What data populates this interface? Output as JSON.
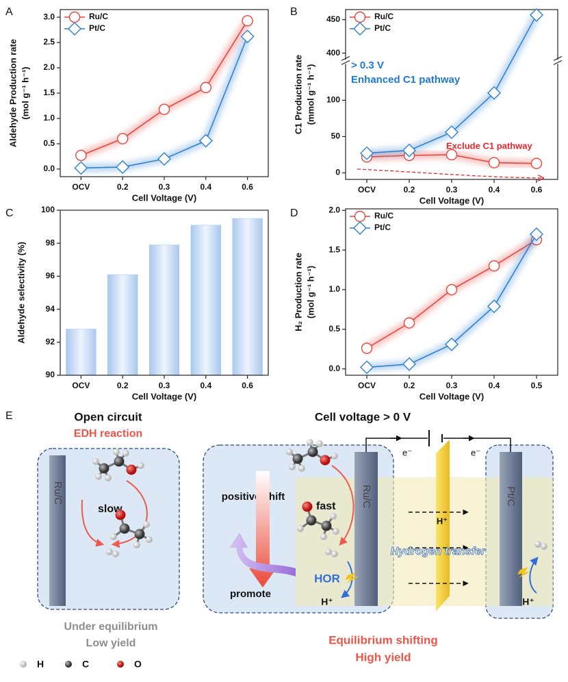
{
  "chart_data": [
    {
      "type": "line",
      "panel": "A",
      "xlabel": "Cell Voltage (V)",
      "ylabel": [
        "Aldehyde Production rate",
        "(mol g⁻¹ h⁻¹)"
      ],
      "categories": [
        "OCV",
        "0.2",
        "0.3",
        "0.4",
        "0.6"
      ],
      "ylim": [
        -0.15,
        3.15
      ],
      "yticks": [
        {
          "value": 0,
          "label": "0.0"
        },
        0.5,
        {
          "value": 1,
          "label": "1.0"
        },
        1.5,
        {
          "value": 2,
          "label": "2.0"
        },
        2.5,
        {
          "value": 3,
          "label": "3.0"
        }
      ],
      "legend": "upper left",
      "series": [
        {
          "name": "Ru/C",
          "color": "#e8453c",
          "marker": "circle",
          "values": [
            0.27,
            0.6,
            1.18,
            1.61,
            2.93
          ]
        },
        {
          "name": "Pt/C",
          "color": "#2f80d1",
          "marker": "diamond",
          "values": [
            0.02,
            0.04,
            0.2,
            0.56,
            2.62
          ]
        }
      ]
    },
    {
      "type": "line",
      "panel": "B",
      "xlabel": "Cell Voltage (V)",
      "ylabel": [
        "C1 Production rate",
        "(mmol g⁻¹ h⁻¹)"
      ],
      "categories": [
        "OCV",
        "0.2",
        "0.3",
        "0.4",
        "0.6"
      ],
      "ylim": [
        -9,
        465
      ],
      "ybreak": [
        150,
        390
      ],
      "yticks": [
        0,
        50,
        100,
        400,
        450
      ],
      "legend": "upper left",
      "annotations": [
        {
          "text": "> 0.3 V",
          "color": "#1f78d1"
        },
        {
          "text": "Enhanced C1 pathway",
          "color": "#1f78d1"
        },
        {
          "text": "Exclude C1 pathway",
          "color": "#e8262a"
        }
      ],
      "series": [
        {
          "name": "Ru/C",
          "color": "#e8453c",
          "marker": "circle",
          "values": [
            22,
            24,
            25,
            14,
            13
          ]
        },
        {
          "name": "Pt/C",
          "color": "#2f80d1",
          "marker": "diamond",
          "values": [
            27,
            31,
            56,
            110,
            457
          ]
        }
      ]
    },
    {
      "type": "bar",
      "panel": "C",
      "xlabel": "Cell Voltage (V)",
      "ylabel": [
        "Aldehyde selectivity (%)"
      ],
      "categories": [
        "OCV",
        "0.2",
        "0.3",
        "0.4",
        "0.6"
      ],
      "values": [
        92.8,
        96.1,
        97.9,
        99.1,
        99.5
      ],
      "color": "#a9c8ee",
      "ylim": [
        90,
        100
      ],
      "yticks": [
        90,
        92,
        94,
        96,
        98,
        100
      ]
    },
    {
      "type": "line",
      "panel": "D",
      "xlabel": "Cell Voltage (V)",
      "ylabel": [
        "H₂ Production rate",
        "(mol g⁻¹ h⁻¹)"
      ],
      "categories": [
        "OCV",
        "0.2",
        "0.3",
        "0.4",
        "0.5"
      ],
      "ylim": [
        -0.08,
        2.02
      ],
      "yticks": [
        {
          "value": 0,
          "label": "0.0"
        },
        0.5,
        {
          "value": 1,
          "label": "1.0"
        },
        1.5,
        {
          "value": 2,
          "label": "2.0"
        }
      ],
      "legend": "upper left",
      "series": [
        {
          "name": "Ru/C",
          "color": "#e8453c",
          "marker": "circle",
          "values": [
            0.26,
            0.58,
            1.0,
            1.3,
            1.63
          ]
        },
        {
          "name": "Pt/C",
          "color": "#2f80d1",
          "marker": "diamond",
          "values": [
            0.02,
            0.06,
            0.31,
            0.79,
            1.7
          ]
        }
      ]
    }
  ],
  "diagram": {
    "panel": "E",
    "left": {
      "title": "Open circuit",
      "subtitle": "EDH reaction",
      "electrode": "Ru/C",
      "rate": "slow",
      "caption": [
        "Under equilibrium",
        "Low yield"
      ]
    },
    "atoms": [
      "H",
      "C",
      "O"
    ],
    "right": {
      "title": "Cell voltage  > 0 V",
      "shift": "positive shift",
      "rate": "fast",
      "promote": "promote",
      "hor": "HOR",
      "proton_anode": "H⁺",
      "anode": "Ru/C",
      "cathode": "Pt/C",
      "electron_left": "e⁻",
      "electron_right": "e⁻",
      "proton_membrane": "H⁺",
      "transfer": "Hydrogen transfer",
      "proton_cathode": "H⁺",
      "caption": [
        "Equilibrium shifting",
        "High yield"
      ]
    }
  }
}
